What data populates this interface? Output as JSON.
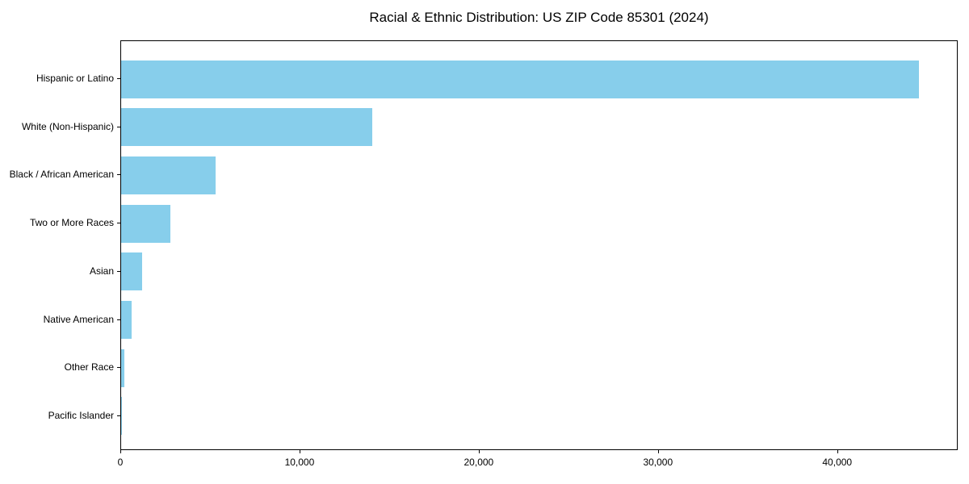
{
  "figure": {
    "background": "#ffffff"
  },
  "chart_data": {
    "type": "bar",
    "orientation": "horizontal",
    "title": "Racial & Ethnic Distribution: US ZIP Code 85301 (2024)",
    "categories": [
      "Hispanic or Latino",
      "White (Non-Hispanic)",
      "Black / African American",
      "Two or More Races",
      "Asian",
      "Native American",
      "Other Race",
      "Pacific Islander"
    ],
    "values": [
      44500,
      14000,
      5250,
      2750,
      1170,
      600,
      200,
      20
    ],
    "xlabel": "",
    "ylabel": "",
    "xlim": [
      0,
      46725
    ],
    "xticks": [
      0,
      10000,
      20000,
      30000,
      40000
    ],
    "xtick_labels": [
      "0",
      "10,000",
      "20,000",
      "30,000",
      "40,000"
    ],
    "grid": false,
    "legend": null,
    "bar_color": "#87CEEB",
    "axis_color": "#000000",
    "text_color": "#000000",
    "category_order": "largest_on_top"
  }
}
